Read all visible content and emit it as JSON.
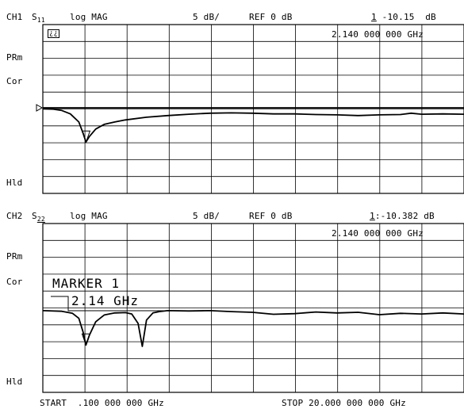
{
  "ch1": {
    "channel": "CH1",
    "param_main": "S",
    "param_sub": "11",
    "format": "log MAG",
    "scale": "5 dB/",
    "ref": "REF 0 dB",
    "marker_num": "1",
    "marker_value": " -10.15  dB",
    "marker_freq": "2.140 000 000 GHz",
    "status": [
      "PRm",
      "Cor",
      "Hld"
    ],
    "box_icon": "¿¿"
  },
  "ch2": {
    "channel": "CH2",
    "param_main": "S",
    "param_sub": "22",
    "format": "log MAG",
    "scale": "5 dB/",
    "ref": "REF 0 dB",
    "marker_num": "1",
    "marker_value": ":-10.382 dB",
    "marker_freq": "2.140 000 000 GHz",
    "status": [
      "PRm",
      "Cor",
      "Hld"
    ],
    "marker_box_title": "MARKER 1",
    "marker_box_value": "2.14 GHz"
  },
  "footer": {
    "start": "START  .100 000 000 GHz",
    "stop": "STOP 20.000 000 000 GHz"
  },
  "chart_data": [
    {
      "type": "line",
      "title": "CH1 S11 log MAG",
      "xlabel": "",
      "ylabel": "",
      "x_range_ghz": [
        0.1,
        20.0
      ],
      "ylim": [
        -50,
        0
      ],
      "y_per_div_db": 5,
      "ref_db": 0,
      "grid": true,
      "series": [
        {
          "name": "S11",
          "x": [
            0.1,
            0.6,
            1.0,
            1.4,
            1.8,
            2.0,
            2.14,
            2.3,
            2.6,
            3.0,
            3.5,
            4.0,
            5.0,
            6.0,
            7.0,
            8.0,
            9.0,
            10.0,
            11.0,
            12.0,
            13.0,
            14.0,
            15.0,
            16.0,
            17.0,
            17.5,
            18.0,
            19.0,
            20.0
          ],
          "y": [
            -0.3,
            -0.4,
            -0.8,
            -1.8,
            -4.2,
            -7.5,
            -10.15,
            -8.5,
            -6.3,
            -4.9,
            -4.2,
            -3.6,
            -2.8,
            -2.3,
            -1.9,
            -1.6,
            -1.5,
            -1.6,
            -1.8,
            -1.8,
            -2.0,
            -2.1,
            -2.3,
            -2.1,
            -2.0,
            -1.6,
            -1.9,
            -1.8,
            -1.9
          ]
        }
      ]
    },
    {
      "type": "line",
      "title": "CH2 S22 log MAG",
      "xlabel": "",
      "ylabel": "",
      "x_range_ghz": [
        0.1,
        20.0
      ],
      "ylim": [
        -50,
        0
      ],
      "y_per_div_db": 5,
      "ref_db": 0,
      "grid": true,
      "series": [
        {
          "name": "S22",
          "x": [
            0.1,
            1.0,
            1.5,
            1.8,
            2.0,
            2.14,
            2.3,
            2.6,
            3.0,
            3.5,
            4.0,
            4.3,
            4.6,
            4.8,
            5.0,
            5.3,
            5.6,
            6.0,
            7.0,
            8.0,
            9.0,
            10.0,
            11.0,
            12.0,
            13.0,
            14.0,
            15.0,
            16.0,
            17.0,
            18.0,
            19.0,
            20.0
          ],
          "y": [
            -0.2,
            -0.4,
            -1.0,
            -2.5,
            -6.5,
            -10.382,
            -7.5,
            -3.5,
            -1.5,
            -0.9,
            -0.8,
            -1.2,
            -4.0,
            -10.8,
            -3.0,
            -0.9,
            -0.5,
            -0.2,
            -0.3,
            -0.2,
            -0.5,
            -0.7,
            -1.3,
            -1.1,
            -0.6,
            -0.9,
            -0.7,
            -1.4,
            -1.0,
            -1.2,
            -0.9,
            -1.2
          ]
        }
      ]
    }
  ]
}
